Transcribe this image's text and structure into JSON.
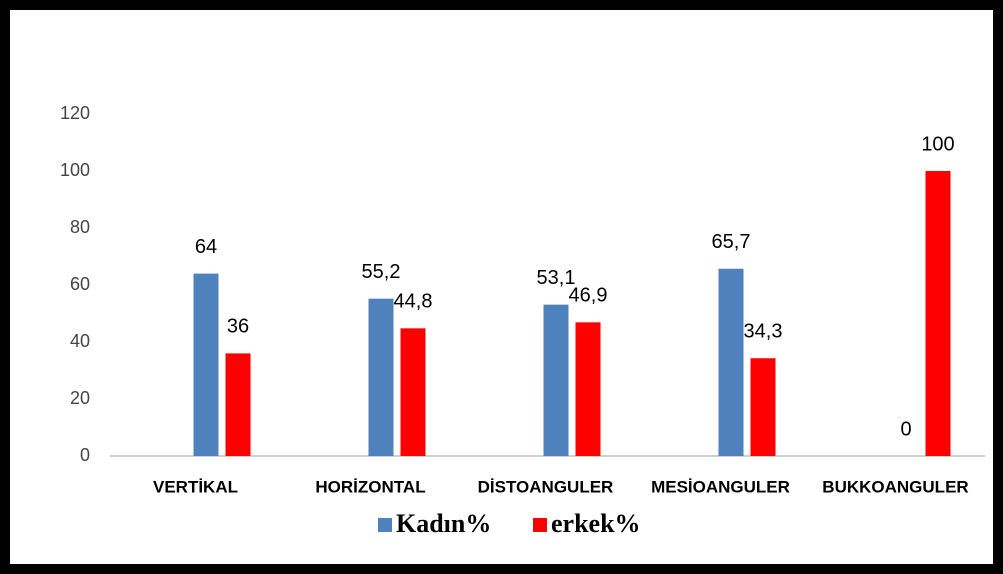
{
  "chart_data": {
    "type": "bar",
    "categories": [
      "VERTİKAL",
      "HORİZONTAL",
      "DİSTOANGULER",
      "MESİOANGULER",
      "BUKKOANGULER"
    ],
    "series": [
      {
        "name": "Kadın%",
        "color": "#4f81bd",
        "values": [
          64,
          55.2,
          53.1,
          65.7,
          0
        ],
        "value_labels": [
          "64",
          "55,2",
          "53,1",
          "65,7",
          "0"
        ]
      },
      {
        "name": "erkek%",
        "color": "#ff0000",
        "values": [
          36,
          44.8,
          46.9,
          34.3,
          100
        ],
        "value_labels": [
          "36",
          "44,8",
          "46,9",
          "34,3",
          "100"
        ]
      }
    ],
    "ylim": [
      0,
      120
    ],
    "yticks": [
      0,
      20,
      40,
      60,
      80,
      100,
      120
    ],
    "grid": false,
    "legend": "bottom"
  }
}
